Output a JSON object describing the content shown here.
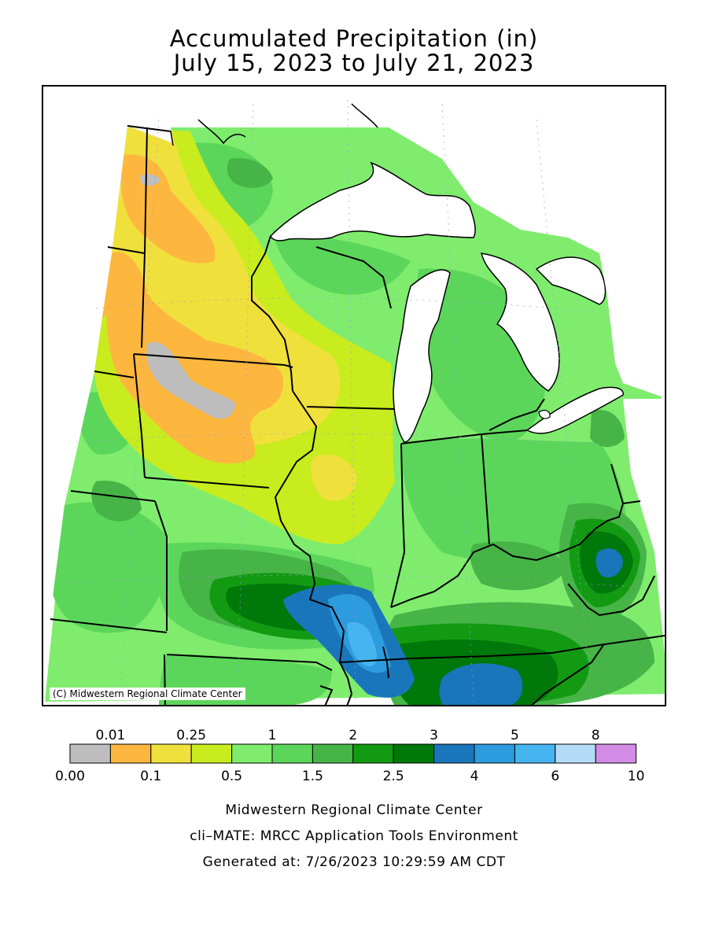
{
  "title": {
    "line1": "Accumulated Precipitation (in)",
    "line2": "July 15, 2023 to July 21, 2023"
  },
  "map": {
    "copyright": "(C) Midwestern Regional Climate Center",
    "lake_color": "#ffffff",
    "boundary_color": "#000000"
  },
  "legend": {
    "bins": [
      {
        "color": "#bebebe"
      },
      {
        "color": "#fdb73f"
      },
      {
        "color": "#f0e03c"
      },
      {
        "color": "#c8ec1e"
      },
      {
        "color": "#7fec6e"
      },
      {
        "color": "#5cd65a"
      },
      {
        "color": "#46b446"
      },
      {
        "color": "#129b12"
      },
      {
        "color": "#00780a"
      },
      {
        "color": "#1a76ba"
      },
      {
        "color": "#2d9cde"
      },
      {
        "color": "#46b4ef"
      },
      {
        "color": "#b4dcf8"
      },
      {
        "color": "#d28ce6"
      }
    ],
    "top_labels": [
      "0.01",
      "0.25",
      "1",
      "2",
      "3",
      "5",
      "8"
    ],
    "bottom_labels": [
      "0.00",
      "0.1",
      "0.5",
      "1.5",
      "2.5",
      "4",
      "6",
      "10"
    ]
  },
  "footer": {
    "line1": "Midwestern Regional Climate Center",
    "line2": "cli–MATE: MRCC Application Tools Environment",
    "line3": "Generated at: 7/26/2023 10:29:59 AM CDT"
  }
}
